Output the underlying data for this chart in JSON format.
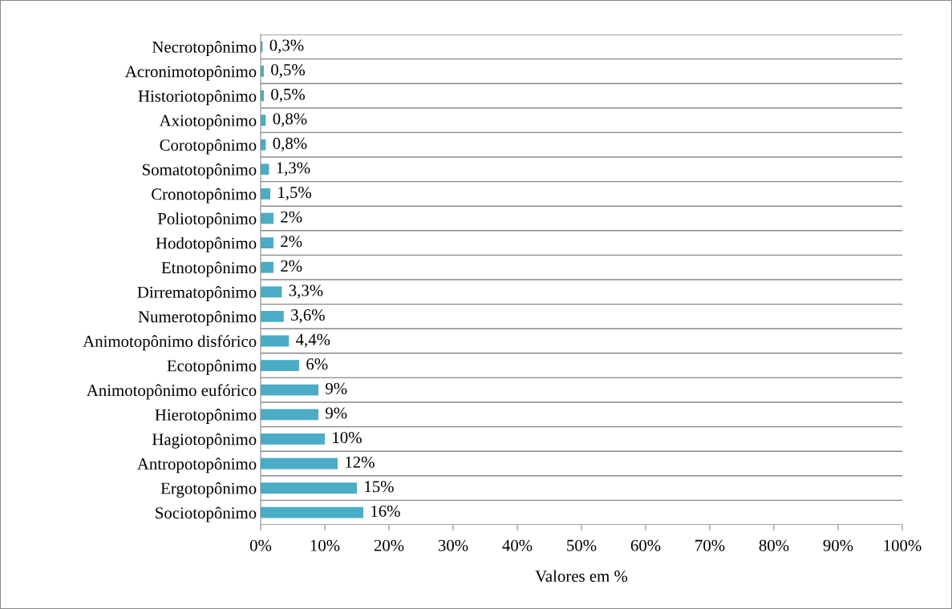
{
  "chart_data": {
    "type": "bar",
    "orientation": "horizontal",
    "xlabel": "Valores em %",
    "categories": [
      "Necrotopônimo",
      "Acronimotopônimo",
      "Historiotopônimo",
      "Axiotopônimo",
      "Corotopônimo",
      "Somatotopônimo",
      "Cronotopônimo",
      "Poliotopônimo",
      "Hodotopônimo",
      "Etnotopônimo",
      "Dirrematopônimo",
      "Numerotopônimo",
      "Animotopônimo disfórico",
      "Ecotopônimo",
      "Animotopônimo eufórico",
      "Hierotopônimo",
      "Hagiotopônimo",
      "Antropotopônimo",
      "Ergotopônimo",
      "Sociotopônimo"
    ],
    "values": [
      0.3,
      0.5,
      0.5,
      0.8,
      0.8,
      1.3,
      1.5,
      2,
      2,
      2,
      3.3,
      3.6,
      4.4,
      6,
      9,
      9,
      10,
      12,
      15,
      16
    ],
    "value_labels": [
      "0,3%",
      "0,5%",
      "0,5%",
      "0,8%",
      "0,8%",
      "1,3%",
      "1,5%",
      "2%",
      "2%",
      "2%",
      "3,3%",
      "3,6%",
      "4,4%",
      "6%",
      "9%",
      "9%",
      "10%",
      "12%",
      "15%",
      "16%"
    ],
    "color": "#4bacc6",
    "xlim": [
      0,
      100
    ],
    "xticks": [
      {
        "value": 0,
        "label": "0%"
      },
      {
        "value": 10,
        "label": "10%"
      },
      {
        "value": 20,
        "label": "20%"
      },
      {
        "value": 30,
        "label": "30%"
      },
      {
        "value": 40,
        "label": "40%"
      },
      {
        "value": 50,
        "label": "50%"
      },
      {
        "value": 60,
        "label": "60%"
      },
      {
        "value": 70,
        "label": "70%"
      },
      {
        "value": 80,
        "label": "80%"
      },
      {
        "value": 90,
        "label": "90%"
      },
      {
        "value": 100,
        "label": "100%"
      }
    ],
    "grid": "y",
    "legend": false
  }
}
